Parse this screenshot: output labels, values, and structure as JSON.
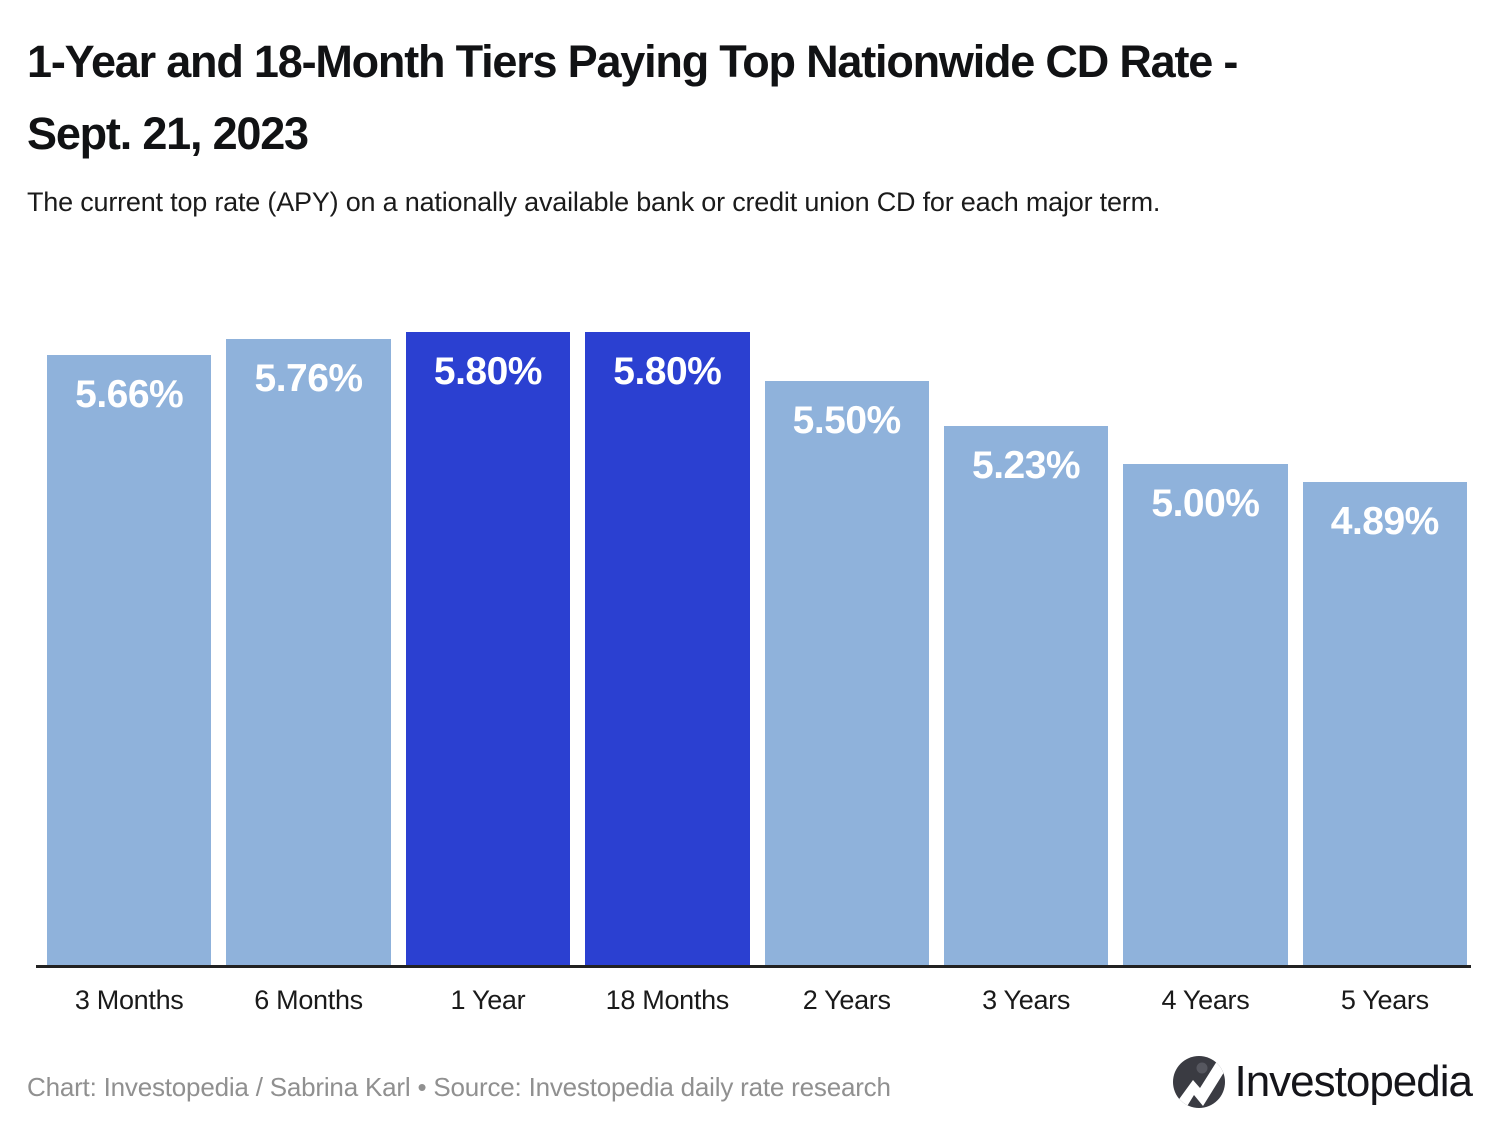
{
  "header": {
    "title_line1": "1-Year and 18-Month Tiers Paying Top Nationwide CD Rate -",
    "title_line2": "Sept. 21, 2023",
    "subtitle": "The current top rate (APY) on a nationally available bank or credit union CD for each major term."
  },
  "chart_data": {
    "type": "bar",
    "title": "1-Year and 18-Month Tiers Paying Top Nationwide CD Rate - Sept. 21, 2023",
    "subtitle": "The current top rate (APY) on a nationally available bank or credit union CD for each major term.",
    "categories": [
      "3 Months",
      "6 Months",
      "1 Year",
      "18 Months",
      "2 Years",
      "3 Years",
      "4 Years",
      "5 Years"
    ],
    "values": [
      5.66,
      5.76,
      5.8,
      5.8,
      5.5,
      5.23,
      5.0,
      4.89
    ],
    "value_labels": [
      "5.66%",
      "5.76%",
      "5.80%",
      "5.80%",
      "5.50%",
      "5.23%",
      "5.00%",
      "4.89%"
    ],
    "highlighted": [
      false,
      false,
      true,
      true,
      false,
      false,
      false,
      false
    ],
    "highlighted_categories": [
      "1 Year",
      "18 Months"
    ],
    "xlabel": "",
    "ylabel": "",
    "ylim": [
      1.96,
      5.8
    ],
    "grid": false,
    "legend": "none",
    "colors": {
      "bar": "#8FB2DB",
      "bar_highlight": "#2B40D1",
      "value_label": "#FFFFFF",
      "axis_line": "#222222"
    }
  },
  "footer": {
    "credit": "Chart: Investopedia / Sabrina Karl • Source: Investopedia daily rate research",
    "logo_text": "Investopedia"
  }
}
